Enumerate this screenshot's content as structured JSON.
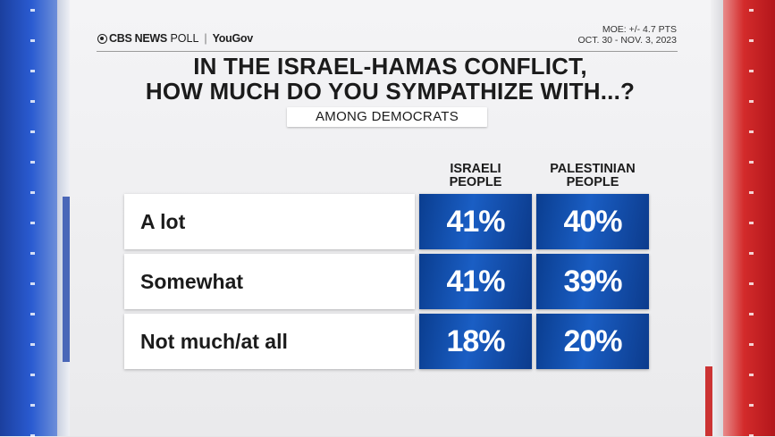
{
  "header": {
    "brand": "CBS NEWS",
    "poll_label": "POLL",
    "partner": "YouGov",
    "moe": "MOE: +/- 4.7 PTS",
    "dates": "OCT. 30 - NOV. 3, 2023"
  },
  "title": {
    "line1": "IN THE ISRAEL-HAMAS CONFLICT,",
    "line2": "HOW MUCH DO YOU SYMPATHIZE WITH...?"
  },
  "subtitle": "AMONG DEMOCRATS",
  "columns": [
    {
      "line1": "ISRAELI",
      "line2": "PEOPLE"
    },
    {
      "line1": "PALESTINIAN",
      "line2": "PEOPLE"
    }
  ],
  "rows": [
    {
      "label": "A lot",
      "israeli": "41%",
      "palestinian": "40%"
    },
    {
      "label": "Somewhat",
      "israeli": "41%",
      "palestinian": "39%"
    },
    {
      "label": "Not much/at all",
      "israeli": "18%",
      "palestinian": "20%"
    }
  ],
  "colors": {
    "cell_blue": "#1a5ec4",
    "left_bar_blue": "#2a5bd1",
    "right_bar_red": "#d32b2b"
  }
}
